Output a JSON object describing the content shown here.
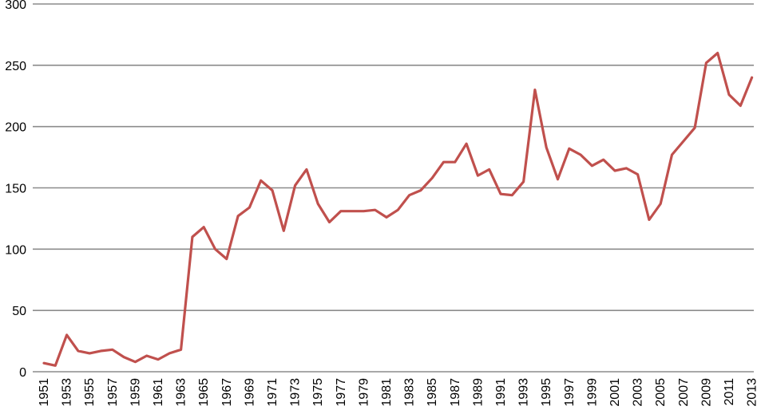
{
  "chart_data": {
    "type": "line",
    "title": "",
    "xlabel": "",
    "ylabel": "",
    "ylim": [
      0,
      300
    ],
    "yticks": [
      0,
      50,
      100,
      150,
      200,
      250,
      300
    ],
    "x_tick_labels": [
      "1951",
      "1953",
      "1955",
      "1957",
      "1959",
      "1961",
      "1963",
      "1965",
      "1967",
      "1969",
      "1971",
      "1973",
      "1975",
      "1977",
      "1979",
      "1981",
      "1983",
      "1985",
      "1987",
      "1989",
      "1991",
      "1993",
      "1995",
      "1997",
      "1999",
      "2001",
      "2003",
      "2005",
      "2007",
      "2009",
      "2011",
      "2013"
    ],
    "grid": true,
    "legend": "none",
    "series_color": "#c0504d",
    "x": [
      1951,
      1952,
      1953,
      1954,
      1955,
      1956,
      1957,
      1958,
      1959,
      1960,
      1961,
      1962,
      1963,
      1964,
      1965,
      1966,
      1967,
      1968,
      1969,
      1970,
      1971,
      1972,
      1973,
      1974,
      1975,
      1976,
      1977,
      1978,
      1979,
      1980,
      1981,
      1982,
      1983,
      1984,
      1985,
      1986,
      1987,
      1988,
      1989,
      1990,
      1991,
      1992,
      1993,
      1994,
      1995,
      1996,
      1997,
      1998,
      1999,
      2000,
      2001,
      2002,
      2003,
      2004,
      2005,
      2006,
      2007,
      2008,
      2009,
      2010,
      2011,
      2012,
      2013
    ],
    "series": [
      {
        "values": [
          7,
          5,
          30,
          17,
          15,
          17,
          18,
          12,
          8,
          13,
          10,
          15,
          18,
          110,
          118,
          100,
          92,
          127,
          134,
          156,
          148,
          115,
          152,
          165,
          137,
          122,
          131,
          131,
          131,
          132,
          126,
          132,
          144,
          148,
          158,
          171,
          171,
          186,
          160,
          165,
          145,
          144,
          155,
          230,
          183,
          157,
          182,
          177,
          168,
          173,
          164,
          166,
          161,
          124,
          137,
          177,
          188,
          199,
          252,
          260,
          226,
          217,
          240
        ]
      }
    ]
  }
}
